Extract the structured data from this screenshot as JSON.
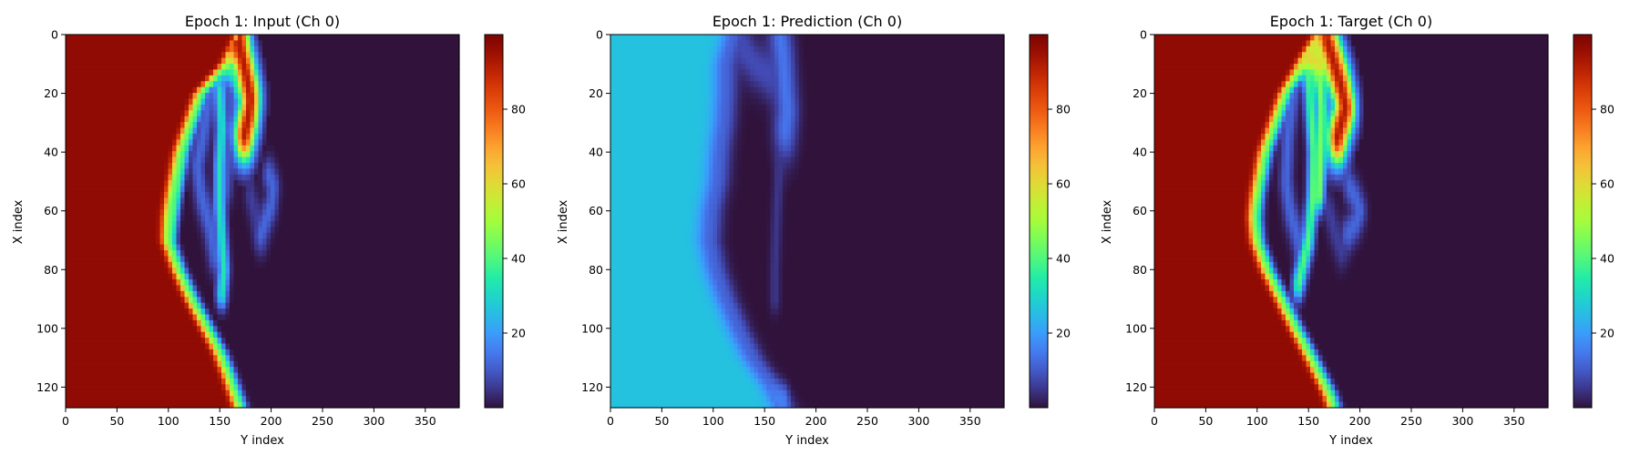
{
  "chart_data": [
    {
      "type": "heatmap",
      "title": "Epoch 1: Input (Ch 0)",
      "xlabel": "Y index",
      "ylabel": "X index",
      "xlim": [
        0,
        383
      ],
      "ylim": [
        127,
        0
      ],
      "x_ticks": [
        0,
        50,
        100,
        150,
        200,
        250,
        300,
        350
      ],
      "y_ticks": [
        0,
        20,
        40,
        60,
        80,
        100,
        120
      ],
      "colorbar": {
        "min": 0,
        "max": 100,
        "ticks": [
          20,
          40,
          60,
          80
        ],
        "colormap": "turbo"
      },
      "field": {
        "hot_value": 97,
        "cold_value": 0,
        "front_width": 2.2,
        "front_boundary": [
          [
            0,
            172
          ],
          [
            10,
            158
          ],
          [
            20,
            132
          ],
          [
            40,
            112
          ],
          [
            55,
            104
          ],
          [
            62,
            101
          ],
          [
            70,
            100
          ],
          [
            80,
            110
          ],
          [
            90,
            123
          ],
          [
            100,
            138
          ],
          [
            108,
            150
          ],
          [
            115,
            158
          ],
          [
            122,
            165
          ],
          [
            127,
            170
          ]
        ],
        "background_wisp_value": 4,
        "wisps": [
          {
            "points": [
              [
                2,
                168
              ],
              [
                8,
                172
              ],
              [
                16,
                177
              ],
              [
                22,
                180
              ],
              [
                28,
                178
              ],
              [
                34,
                174
              ]
            ],
            "value": 92,
            "width": 2.2
          },
          {
            "points": [
              [
                10,
                130
              ],
              [
                8,
                140
              ],
              [
                10,
                152
              ],
              [
                12,
                165
              ],
              [
                18,
                170
              ]
            ],
            "value": 38,
            "width": 1.2
          },
          {
            "points": [
              [
                14,
                126
              ],
              [
                24,
                122
              ],
              [
                35,
                115
              ],
              [
                45,
                110
              ],
              [
                60,
                104
              ],
              [
                72,
                99
              ]
            ],
            "value": 40,
            "width": 1.2
          },
          {
            "points": [
              [
                20,
                150
              ],
              [
                32,
                152
              ],
              [
                45,
                150
              ],
              [
                58,
                150
              ],
              [
                70,
                152
              ],
              [
                80,
                154
              ],
              [
                88,
                152
              ]
            ],
            "value": 33,
            "width": 1.2
          },
          {
            "points": [
              [
                20,
                140
              ],
              [
                32,
                135
              ],
              [
                45,
                128
              ],
              [
                55,
                132
              ],
              [
                65,
                140
              ],
              [
                75,
                145
              ]
            ],
            "value": 12,
            "width": 1.5
          },
          {
            "points": [
              [
                20,
                160
              ],
              [
                30,
                162
              ],
              [
                42,
                158
              ],
              [
                52,
                156
              ]
            ],
            "value": 10,
            "width": 1.5
          },
          {
            "points": [
              [
                48,
                198
              ],
              [
                52,
                202
              ],
              [
                58,
                200
              ],
              [
                63,
                195
              ],
              [
                68,
                190
              ]
            ],
            "value": 12,
            "width": 1.4
          },
          {
            "points": [
              [
                55,
                180
              ],
              [
                62,
                185
              ],
              [
                68,
                190
              ]
            ],
            "value": 6,
            "width": 1.4
          }
        ]
      }
    },
    {
      "type": "heatmap",
      "title": "Epoch 1: Prediction (Ch 0)",
      "xlabel": "Y index",
      "ylabel": "X index",
      "xlim": [
        0,
        383
      ],
      "ylim": [
        127,
        0
      ],
      "x_ticks": [
        0,
        50,
        100,
        150,
        200,
        250,
        300,
        350
      ],
      "y_ticks": [
        0,
        20,
        40,
        60,
        80,
        100,
        120
      ],
      "colorbar": {
        "min": 0,
        "max": 100,
        "ticks": [
          20,
          40,
          60,
          80
        ],
        "colormap": "turbo"
      },
      "field": {
        "hot_value": 26,
        "cold_value": 0,
        "front_width": 4,
        "front_boundary": [
          [
            0,
            120
          ],
          [
            6,
            115
          ],
          [
            10,
            112
          ],
          [
            20,
            112
          ],
          [
            30,
            110
          ],
          [
            40,
            106
          ],
          [
            50,
            104
          ],
          [
            60,
            98
          ],
          [
            70,
            96
          ],
          [
            80,
            102
          ],
          [
            90,
            112
          ],
          [
            100,
            124
          ],
          [
            110,
            138
          ],
          [
            120,
            158
          ],
          [
            127,
            168
          ]
        ],
        "background_wisp_value": 2,
        "wisps": [
          {
            "points": [
              [
                0,
                165
              ],
              [
                8,
                168
              ],
              [
                18,
                170
              ],
              [
                26,
                172
              ],
              [
                32,
                170
              ]
            ],
            "value": 14,
            "width": 2.5
          },
          {
            "points": [
              [
                5,
                130
              ],
              [
                10,
                140
              ],
              [
                14,
                155
              ]
            ],
            "value": 8,
            "width": 2
          },
          {
            "points": [
              [
                20,
                168
              ],
              [
                40,
                165
              ],
              [
                60,
                162
              ],
              [
                80,
                160
              ],
              [
                90,
                160
              ]
            ],
            "value": 5,
            "width": 1.2
          },
          {
            "points": [
              [
                125,
                0
              ],
              [
                125,
                60
              ],
              [
                125,
                120
              ],
              [
                125,
                168
              ]
            ],
            "value": 16,
            "width": 1.2
          }
        ]
      }
    },
    {
      "type": "heatmap",
      "title": "Epoch 1: Target (Ch 0)",
      "xlabel": "Y index",
      "ylabel": "X index",
      "xlim": [
        0,
        383
      ],
      "ylim": [
        127,
        0
      ],
      "x_ticks": [
        0,
        50,
        100,
        150,
        200,
        250,
        300,
        350
      ],
      "y_ticks": [
        0,
        20,
        40,
        60,
        80,
        100,
        120
      ],
      "colorbar": {
        "min": 0,
        "max": 100,
        "ticks": [
          20,
          40,
          60,
          80
        ],
        "colormap": "turbo"
      },
      "field": {
        "hot_value": 97,
        "cold_value": 0,
        "front_width": 2.2,
        "front_boundary": [
          [
            0,
            162
          ],
          [
            8,
            148
          ],
          [
            20,
            128
          ],
          [
            40,
            108
          ],
          [
            55,
            100
          ],
          [
            62,
            98
          ],
          [
            70,
            100
          ],
          [
            80,
            110
          ],
          [
            90,
            124
          ],
          [
            100,
            138
          ],
          [
            108,
            150
          ],
          [
            115,
            160
          ],
          [
            122,
            170
          ],
          [
            127,
            175
          ]
        ],
        "background_wisp_value": 4,
        "wisps": [
          {
            "points": [
              [
                2,
                168
              ],
              [
                10,
                175
              ],
              [
                18,
                182
              ],
              [
                25,
                186
              ],
              [
                30,
                182
              ],
              [
                35,
                178
              ]
            ],
            "value": 92,
            "width": 2.2
          },
          {
            "points": [
              [
                2,
                130
              ],
              [
                5,
                140
              ],
              [
                8,
                152
              ],
              [
                10,
                160
              ]
            ],
            "value": 60,
            "width": 1.6
          },
          {
            "points": [
              [
                10,
                150
              ],
              [
                25,
                152
              ],
              [
                40,
                155
              ],
              [
                55,
                154
              ],
              [
                70,
                150
              ],
              [
                85,
                140
              ]
            ],
            "value": 40,
            "width": 1.2
          },
          {
            "points": [
              [
                12,
                160
              ],
              [
                25,
                163
              ],
              [
                40,
                162
              ],
              [
                55,
                160
              ]
            ],
            "value": 45,
            "width": 1.2
          },
          {
            "points": [
              [
                20,
                135
              ],
              [
                35,
                130
              ],
              [
                50,
                128
              ],
              [
                60,
                132
              ],
              [
                70,
                140
              ]
            ],
            "value": 12,
            "width": 1.5
          },
          {
            "points": [
              [
                52,
                190
              ],
              [
                56,
                196
              ],
              [
                60,
                200
              ],
              [
                64,
                196
              ],
              [
                68,
                188
              ]
            ],
            "value": 12,
            "width": 1.4
          },
          {
            "points": [
              [
                60,
                170
              ],
              [
                68,
                176
              ],
              [
                74,
                182
              ]
            ],
            "value": 6,
            "width": 1.4
          }
        ]
      }
    }
  ]
}
